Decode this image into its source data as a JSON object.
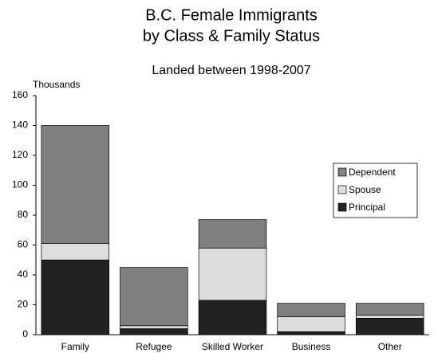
{
  "chart_data": {
    "type": "stacked_bar",
    "title": [
      "B.C. Female Immigrants",
      "by Class & Family Status"
    ],
    "subtitle": "Landed between 1998-2007",
    "y_label": "Thousands",
    "categories": [
      "Family",
      "Refugee",
      "Skilled Worker",
      "Business",
      "Other"
    ],
    "series": [
      {
        "name": "Principal",
        "color": "#222222",
        "values": [
          50,
          4,
          23,
          2,
          11
        ]
      },
      {
        "name": "Spouse",
        "color": "#dddddd",
        "values": [
          11,
          2,
          35,
          10,
          2
        ]
      },
      {
        "name": "Dependent",
        "color": "#808080",
        "values": [
          79,
          39,
          19,
          9,
          8
        ]
      }
    ],
    "ylim": [
      0,
      160
    ],
    "yticks": [
      0,
      20,
      40,
      60,
      80,
      100,
      120,
      140,
      160
    ],
    "grid": false,
    "legend": "right"
  }
}
